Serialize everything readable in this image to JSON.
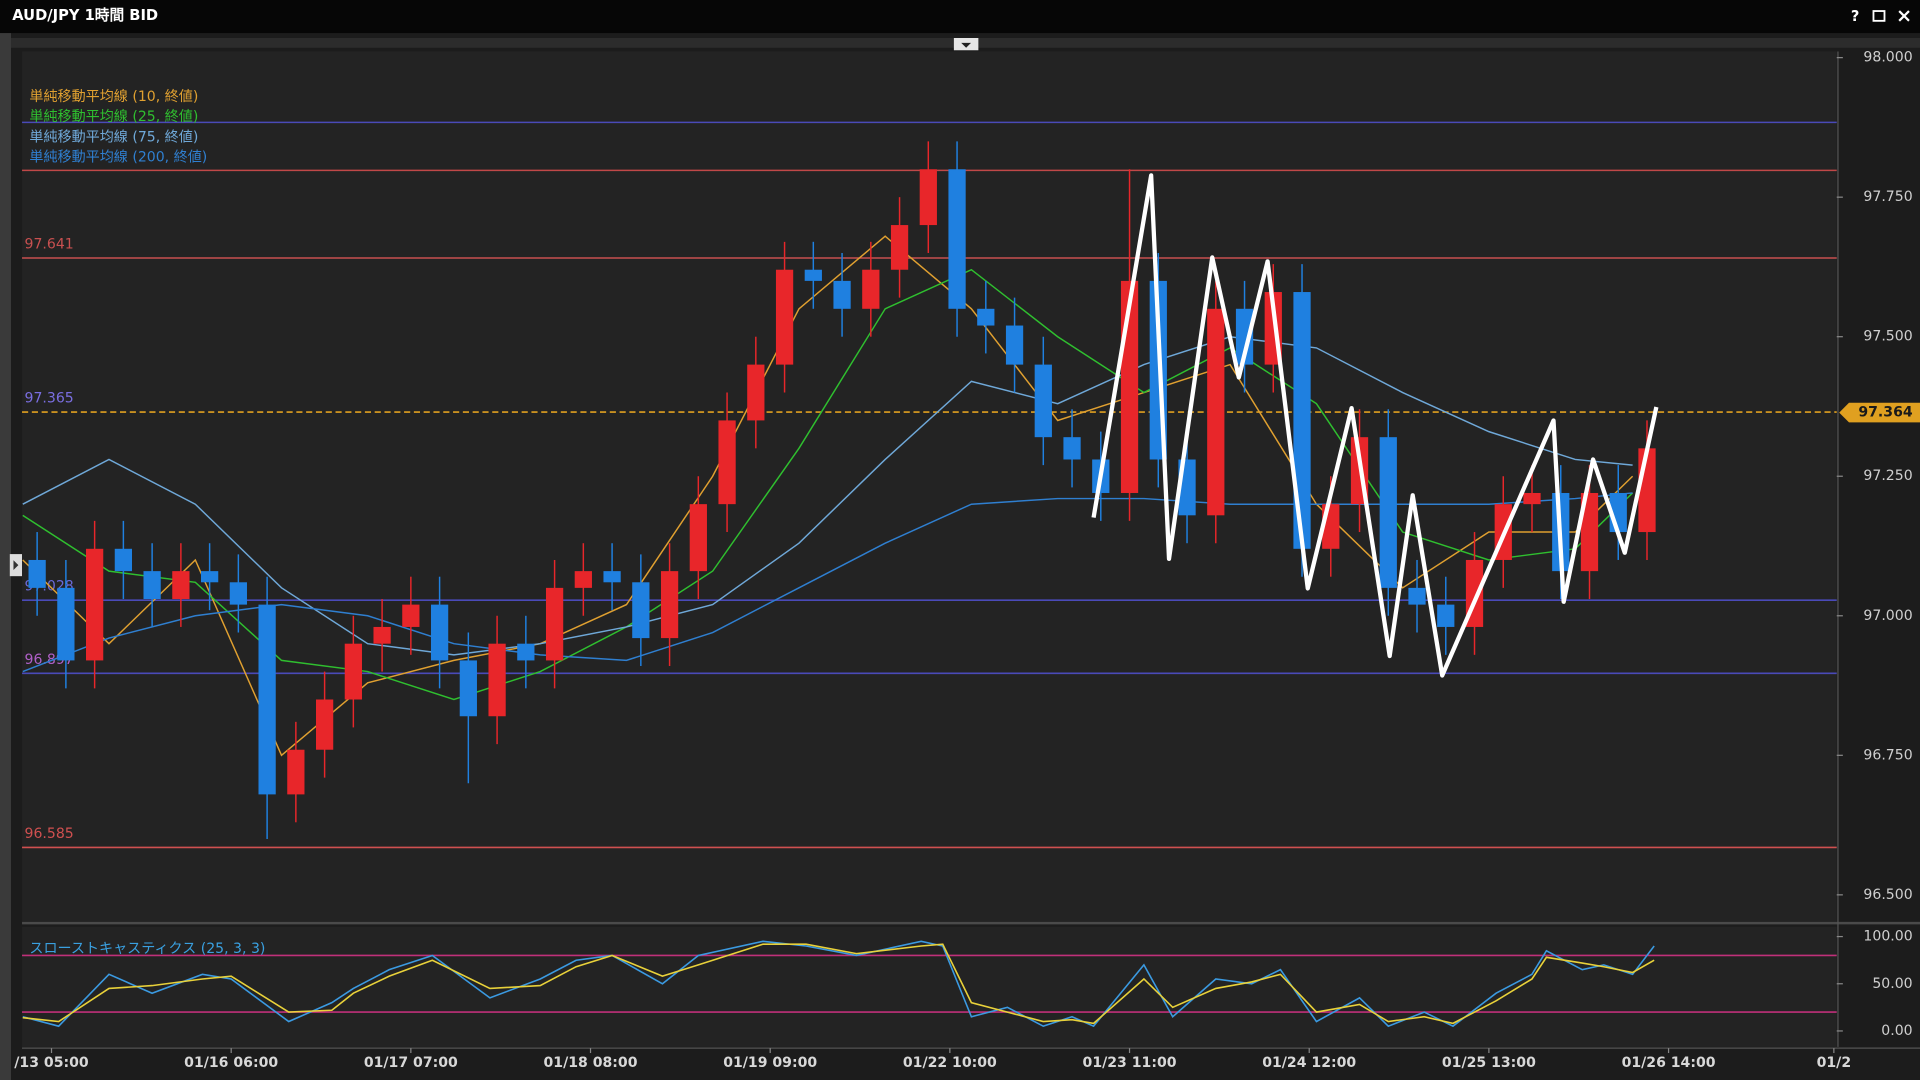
{
  "window": {
    "help": "?"
  },
  "chart_data": {
    "type": "candlestick",
    "title": "AUD/JPY 1時間 BID",
    "up_color": "#e8262a",
    "down_color": "#1f80e0",
    "x": [
      -2,
      2,
      6,
      10,
      14,
      18,
      22,
      26,
      30,
      34,
      38,
      42,
      46,
      50,
      54,
      58,
      62,
      66,
      70,
      74,
      78,
      82,
      86,
      90,
      94,
      98,
      102,
      106,
      110,
      114,
      118,
      122,
      126,
      130,
      134,
      138,
      142,
      146,
      150,
      154,
      158,
      162,
      166,
      170,
      174,
      178,
      182,
      186,
      190,
      194,
      198,
      202,
      206,
      210,
      214,
      218,
      222
    ],
    "open": [
      97.1,
      97.05,
      96.92,
      97.12,
      97.08,
      97.03,
      97.08,
      97.06,
      97.02,
      96.68,
      96.76,
      96.85,
      96.95,
      96.98,
      97.02,
      96.92,
      96.82,
      96.95,
      96.92,
      97.05,
      97.08,
      97.06,
      96.96,
      97.08,
      97.2,
      97.35,
      97.45,
      97.62,
      97.6,
      97.55,
      97.62,
      97.7,
      97.8,
      97.55,
      97.52,
      97.45,
      97.32,
      97.28,
      97.22,
      97.6,
      97.28,
      97.18,
      97.55,
      97.45,
      97.58,
      97.12,
      97.2,
      97.32,
      97.05,
      97.02,
      96.98,
      97.1,
      97.2,
      97.22,
      97.08,
      97.22,
      97.15
    ],
    "high": [
      97.15,
      97.1,
      97.17,
      97.17,
      97.13,
      97.13,
      97.13,
      97.11,
      97.07,
      96.81,
      96.9,
      97.0,
      97.03,
      97.07,
      97.07,
      96.97,
      97.0,
      97.0,
      97.1,
      97.13,
      97.13,
      97.11,
      97.13,
      97.25,
      97.4,
      97.5,
      97.67,
      97.67,
      97.65,
      97.67,
      97.75,
      97.85,
      97.85,
      97.6,
      97.57,
      97.5,
      97.37,
      97.33,
      97.8,
      97.65,
      97.33,
      97.6,
      97.6,
      97.63,
      97.63,
      97.25,
      97.37,
      97.37,
      97.1,
      97.07,
      97.15,
      97.25,
      97.27,
      97.27,
      97.27,
      97.27,
      97.35
    ],
    "low": [
      97.0,
      96.87,
      96.87,
      97.03,
      96.98,
      96.98,
      97.01,
      96.97,
      96.6,
      96.63,
      96.71,
      96.8,
      96.9,
      96.93,
      96.87,
      96.7,
      96.77,
      96.87,
      96.87,
      97.0,
      97.01,
      96.91,
      96.91,
      97.03,
      97.15,
      97.3,
      97.4,
      97.55,
      97.5,
      97.5,
      97.57,
      97.65,
      97.5,
      97.47,
      97.4,
      97.27,
      97.23,
      97.17,
      97.17,
      97.23,
      97.13,
      97.13,
      97.4,
      97.4,
      97.07,
      97.07,
      97.15,
      97.0,
      96.97,
      96.93,
      96.93,
      97.05,
      97.15,
      97.03,
      97.03,
      97.1,
      97.1
    ],
    "close": [
      97.05,
      96.92,
      97.12,
      97.08,
      97.03,
      97.08,
      97.06,
      97.02,
      96.68,
      96.76,
      96.85,
      96.95,
      96.98,
      97.02,
      96.92,
      96.82,
      96.95,
      96.92,
      97.05,
      97.08,
      97.06,
      96.96,
      97.08,
      97.2,
      97.35,
      97.45,
      97.62,
      97.6,
      97.55,
      97.62,
      97.7,
      97.8,
      97.55,
      97.52,
      97.45,
      97.32,
      97.28,
      97.22,
      97.6,
      97.28,
      97.18,
      97.55,
      97.45,
      97.58,
      97.12,
      97.2,
      97.32,
      97.05,
      97.02,
      96.98,
      97.1,
      97.2,
      97.22,
      97.08,
      97.22,
      97.15,
      97.3
    ],
    "moving_averages": {
      "x": [
        -4,
        8,
        20,
        32,
        44,
        56,
        68,
        80,
        92,
        104,
        116,
        128,
        140,
        152,
        164,
        176,
        188,
        200,
        212,
        220
      ],
      "series": [
        {
          "name": "単純移動平均線 (10, 終値)",
          "color": "#e0a030",
          "values": [
            97.1,
            96.95,
            97.1,
            96.75,
            96.88,
            96.92,
            96.95,
            97.02,
            97.25,
            97.55,
            97.68,
            97.55,
            97.35,
            97.4,
            97.45,
            97.2,
            97.05,
            97.15,
            97.15,
            97.25
          ]
        },
        {
          "name": "単純移動平均線 (25, 終値)",
          "color": "#2fbf2f",
          "values": [
            97.18,
            97.08,
            97.06,
            96.92,
            96.9,
            96.85,
            96.9,
            96.98,
            97.08,
            97.3,
            97.55,
            97.62,
            97.5,
            97.4,
            97.48,
            97.38,
            97.15,
            97.1,
            97.12,
            97.22
          ]
        },
        {
          "name": "単純移動平均線 (75, 終値)",
          "color": "#6fa8d8",
          "values": [
            97.2,
            97.28,
            97.2,
            97.05,
            96.95,
            96.93,
            96.95,
            96.98,
            97.02,
            97.13,
            97.28,
            97.42,
            97.38,
            97.45,
            97.5,
            97.48,
            97.4,
            97.33,
            97.28,
            97.27
          ]
        },
        {
          "name": "単純移動平均線 (200, 終値)",
          "color": "#2f7fd0",
          "values": [
            96.9,
            96.96,
            97.0,
            97.02,
            97.0,
            96.95,
            96.93,
            96.92,
            96.97,
            97.05,
            97.13,
            97.2,
            97.21,
            97.21,
            97.2,
            97.2,
            97.2,
            97.2,
            97.21,
            97.22
          ]
        }
      ]
    },
    "levels": [
      {
        "value": 97.884,
        "color": "#4a4ab8",
        "show_label": false
      },
      {
        "value": 97.798,
        "color": "#c04848",
        "show_label": false
      },
      {
        "value": 97.641,
        "color": "#c85050",
        "show_label": true
      },
      {
        "value": 97.365,
        "color": "#e0a020",
        "dashed": true,
        "label_color": "#7a6ee0",
        "show_label": true
      },
      {
        "value": 97.028,
        "color": "#4a4ab8",
        "label_color": "#6a6ad8",
        "show_label": true
      },
      {
        "value": 96.897,
        "color": "#4a4ab8",
        "label_color": "#b060c8",
        "show_label": true
      },
      {
        "value": 96.585,
        "color": "#d05050",
        "show_label": true
      }
    ],
    "current_price": {
      "value": 97.364,
      "color": "#e0a020"
    },
    "zigzag": {
      "color": "#ffffff",
      "x": [
        145.0,
        153.0,
        155.5,
        161.5,
        165.2,
        169.2,
        174.8,
        180.9,
        186.2,
        189.4,
        193.5,
        209.0,
        210.4,
        214.5,
        218.9,
        223.3
      ],
      "values": [
        97.176,
        97.789,
        97.102,
        97.642,
        97.427,
        97.635,
        97.049,
        97.372,
        96.928,
        97.216,
        96.893,
        97.35,
        97.025,
        97.28,
        97.113,
        97.374
      ]
    },
    "xlim": [
      -4.1,
      248.4
    ],
    "xticks": [
      {
        "value": 0,
        "label": "/13 05:00"
      },
      {
        "value": 25,
        "label": "01/16 06:00"
      },
      {
        "value": 50,
        "label": "01/17 07:00"
      },
      {
        "value": 75,
        "label": "01/18 08:00"
      },
      {
        "value": 100,
        "label": "01/19 09:00"
      },
      {
        "value": 125,
        "label": "01/22 10:00"
      },
      {
        "value": 150,
        "label": "01/23 11:00"
      },
      {
        "value": 175,
        "label": "01/24 12:00"
      },
      {
        "value": 200,
        "label": "01/25 13:00"
      },
      {
        "value": 225,
        "label": "01/26 14:00"
      },
      {
        "value": 248,
        "label": "01/2"
      }
    ],
    "ylim": [
      96.456,
      98.011
    ],
    "yticks": [
      {
        "value": 96.5,
        "label": "96.500"
      },
      {
        "value": 96.75,
        "label": "96.750"
      },
      {
        "value": 97,
        "label": "97.000"
      },
      {
        "value": 97.25,
        "label": "97.250"
      },
      {
        "value": 97.5,
        "label": "97.500"
      },
      {
        "value": 97.75,
        "label": "97.750"
      },
      {
        "value": 98,
        "label": "98.000"
      }
    ],
    "stochastic": {
      "title": "スローストキャスティクス (25, 3, 3)",
      "x": [
        -4,
        1,
        8,
        14,
        21,
        25,
        33,
        39,
        42,
        47,
        53,
        61,
        68,
        73,
        78,
        85,
        90,
        99,
        105,
        112,
        121,
        124,
        128,
        133,
        138,
        142,
        145,
        152,
        156,
        162,
        167,
        171,
        176,
        182,
        186,
        191,
        195,
        201,
        206,
        208,
        213,
        216,
        220,
        223
      ],
      "series": [
        {
          "color": "#3b9ae1",
          "values": [
            15,
            5,
            60,
            40,
            60,
            55,
            10,
            30,
            45,
            65,
            80,
            35,
            55,
            75,
            80,
            50,
            80,
            95,
            90,
            80,
            95,
            90,
            15,
            25,
            5,
            15,
            5,
            70,
            15,
            55,
            50,
            65,
            10,
            35,
            5,
            20,
            5,
            40,
            60,
            85,
            65,
            70,
            60,
            90
          ]
        },
        {
          "color": "#e8d13a",
          "values": [
            14,
            10,
            45,
            48,
            55,
            58,
            20,
            22,
            40,
            58,
            75,
            45,
            48,
            68,
            80,
            58,
            70,
            92,
            92,
            82,
            90,
            92,
            30,
            20,
            10,
            12,
            8,
            55,
            25,
            45,
            52,
            60,
            20,
            28,
            10,
            15,
            8,
            32,
            55,
            78,
            72,
            68,
            62,
            75
          ]
        }
      ],
      "levels": [
        80,
        20
      ],
      "level_color": "#c0307a",
      "ylim": [
        -14.3,
        110.4
      ],
      "yticks": [
        {
          "value": 0,
          "label": "0.00"
        },
        {
          "value": 50,
          "label": "50.00"
        },
        {
          "value": 100,
          "label": "100.00"
        }
      ]
    }
  }
}
